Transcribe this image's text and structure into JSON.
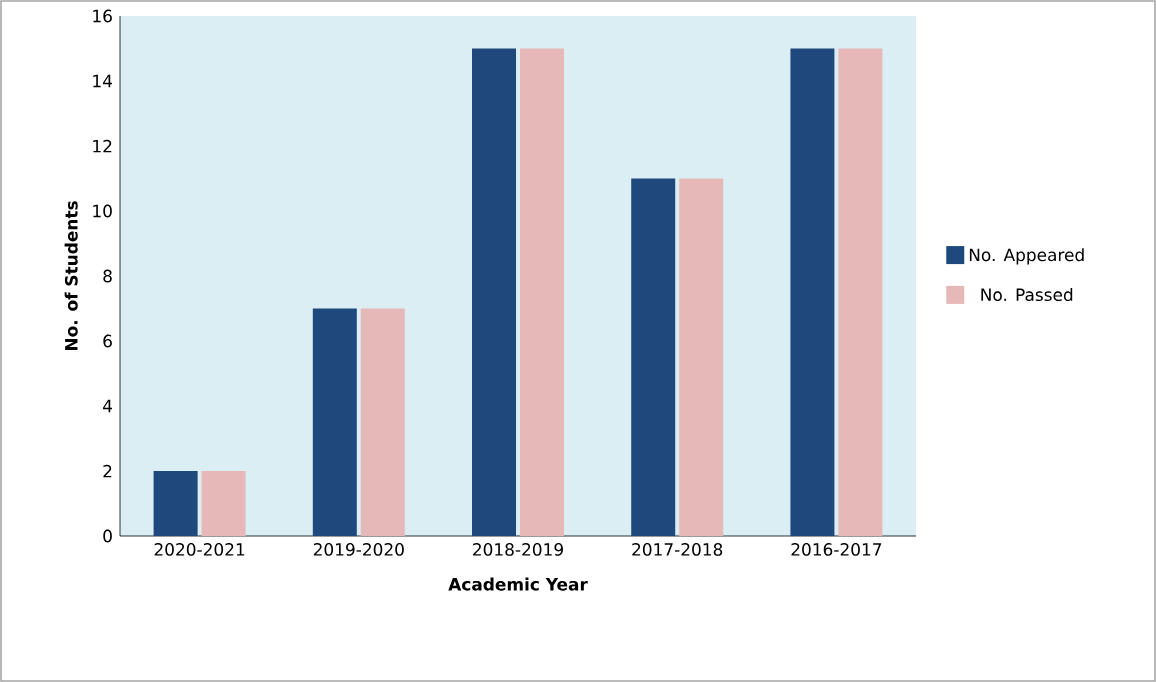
{
  "chart_data": {
    "type": "bar",
    "xlabel": "Academic Year",
    "ylabel": "No. of Students",
    "categories": [
      "2020-2021",
      "2019-2020",
      "2018-2019",
      "2017-2018",
      "2016-2017"
    ],
    "series": [
      {
        "name": "No. Appeared",
        "color": "#1f497d",
        "values": [
          2,
          7,
          15,
          11,
          15
        ]
      },
      {
        "name": "No. Passed",
        "color": "#e6b9b8",
        "values": [
          2,
          7,
          15,
          11,
          15
        ]
      }
    ],
    "ylim": [
      0,
      16
    ],
    "yticks": [
      0,
      2,
      4,
      6,
      8,
      10,
      12,
      14,
      16
    ],
    "legend": "right"
  }
}
